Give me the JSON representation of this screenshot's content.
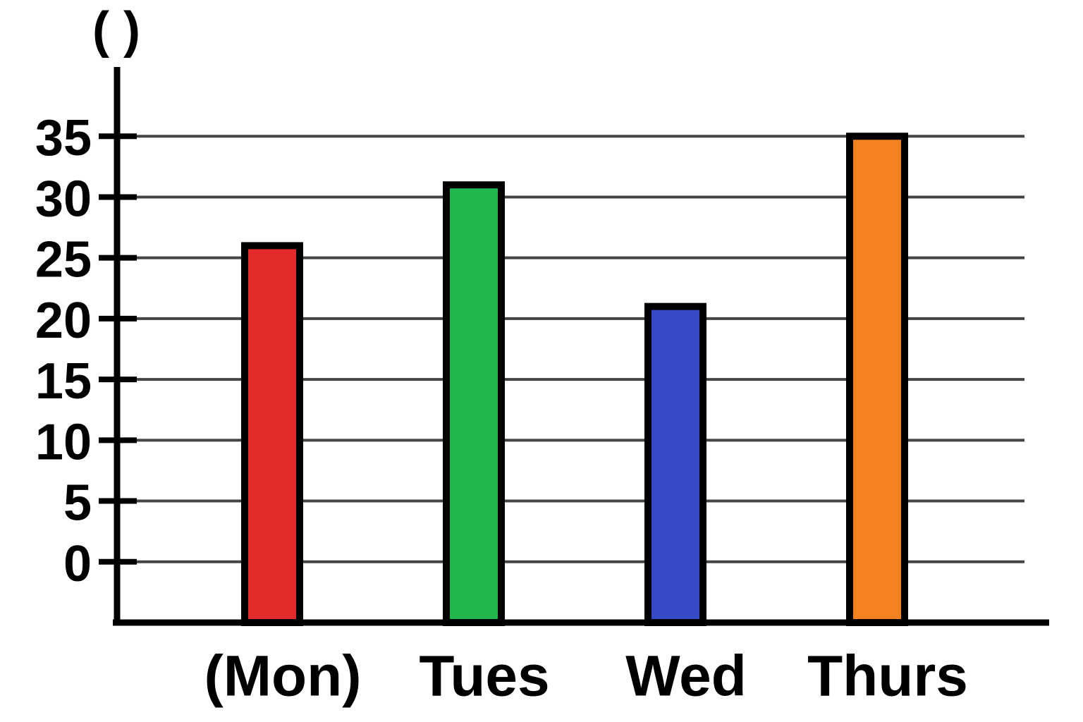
{
  "chart_data": {
    "type": "bar",
    "title": "( )",
    "categories": [
      "(Mon)",
      "Tues",
      "Wed",
      "Thurs"
    ],
    "series": [
      {
        "values": [
          26,
          31,
          21,
          35
        ],
        "colors": [
          "#e32b2b",
          "#22b74d",
          "#3649c6",
          "#f5821f"
        ]
      }
    ],
    "ylim": [
      -5,
      40
    ],
    "yticks": [
      0,
      5,
      10,
      15,
      20,
      25,
      30,
      35
    ],
    "grid": true
  }
}
